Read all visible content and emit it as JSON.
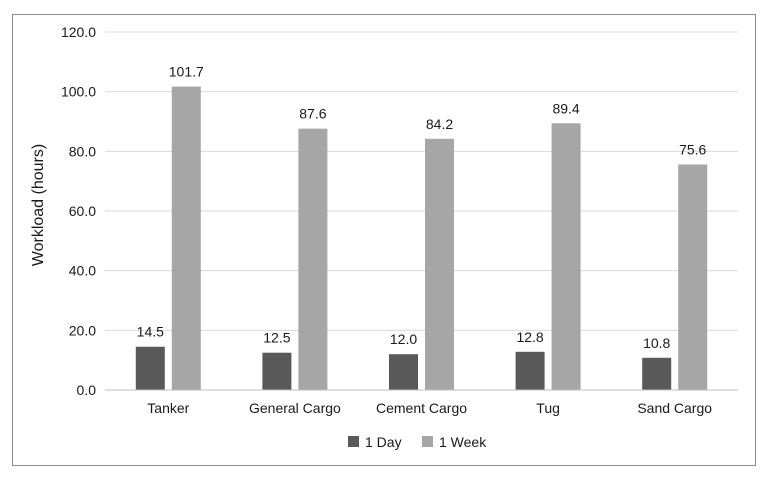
{
  "chart_data": {
    "type": "bar",
    "title": "",
    "xlabel": "",
    "ylabel": "Workload (hours)",
    "ylim": [
      0,
      120
    ],
    "yticks": [
      "0.0",
      "20.0",
      "40.0",
      "60.0",
      "80.0",
      "100.0",
      "120.0"
    ],
    "grid": true,
    "legend_position": "bottom",
    "categories": [
      "Tanker",
      "General Cargo",
      "Cement Cargo",
      "Tug",
      "Sand Cargo"
    ],
    "series": [
      {
        "name": "1 Day",
        "color": "#595959",
        "values": [
          14.5,
          12.5,
          12.0,
          12.8,
          10.8
        ],
        "labels": [
          "14.5",
          "12.5",
          "12.0",
          "12.8",
          "10.8"
        ]
      },
      {
        "name": "1 Week",
        "color": "#a6a6a6",
        "values": [
          101.7,
          87.6,
          84.2,
          89.4,
          75.6
        ],
        "labels": [
          "101.7",
          "87.6",
          "84.2",
          "89.4",
          "75.6"
        ]
      }
    ]
  }
}
